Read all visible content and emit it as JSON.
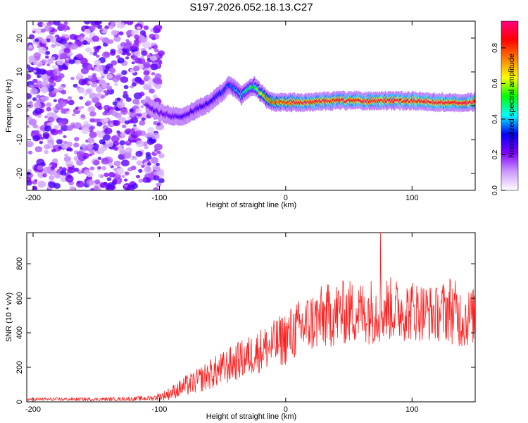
{
  "title": "S197.2026.052.18.13.C27",
  "chart_data": [
    {
      "type": "heatmap",
      "name": "spectrogram",
      "xlabel": "Height of straight line (km)",
      "ylabel": "Frequency (Hz)",
      "xlim": [
        -205,
        150
      ],
      "ylim": [
        -25,
        25
      ],
      "xticks": [
        -200,
        -100,
        0,
        100
      ],
      "yticks": [
        -20,
        -10,
        0,
        10,
        20
      ],
      "colorbar": {
        "label": "Normalized spectral amplitude",
        "range": [
          0,
          0.95
        ],
        "ticks": [
          "0.0",
          "0.2",
          "0.4",
          "0.6",
          "0.8"
        ],
        "colors": [
          "#ffffff",
          "#cc99ff",
          "#7f00ff",
          "#0000ff",
          "#00ffff",
          "#00ff00",
          "#ffff00",
          "#ff7f00",
          "#ff0000",
          "#ff0080"
        ]
      },
      "ridge": {
        "x": [
          -110,
          -100,
          -90,
          -80,
          -70,
          -60,
          -50,
          -45,
          -40,
          -35,
          -30,
          -25,
          -20,
          -15,
          -10,
          0,
          10,
          20,
          40,
          60,
          80,
          100,
          120,
          140,
          150
        ],
        "freq": [
          0,
          -2,
          -3,
          -3,
          -1,
          1,
          4,
          6,
          5,
          3,
          5,
          6,
          4,
          2,
          1,
          1,
          1,
          1,
          1.5,
          1.5,
          1.5,
          1.5,
          1,
          1,
          1
        ],
        "amp": [
          0.25,
          0.25,
          0.25,
          0.28,
          0.28,
          0.3,
          0.35,
          0.35,
          0.4,
          0.45,
          0.5,
          0.55,
          0.65,
          0.75,
          0.8,
          0.85,
          0.88,
          0.9,
          0.9,
          0.9,
          0.9,
          0.92,
          0.92,
          0.9,
          0.9
        ]
      },
      "noise_region": [
        -205,
        -98
      ]
    },
    {
      "type": "line",
      "name": "snr",
      "xlabel": "Height of straight line (km)",
      "ylabel": "SNR (10 * v/v)",
      "xlim": [
        -205,
        150
      ],
      "ylim": [
        0,
        980
      ],
      "xticks": [
        -200,
        -100,
        0,
        100
      ],
      "yticks": [
        0,
        200,
        400,
        600,
        800
      ],
      "color": "#ff2020",
      "series": [
        {
          "name": "SNR",
          "x": [
            -205,
            -180,
            -150,
            -120,
            -105,
            -100,
            -95,
            -90,
            -80,
            -70,
            -60,
            -50,
            -40,
            -30,
            -20,
            -10,
            0,
            10,
            20,
            30,
            40,
            50,
            60,
            70,
            80,
            90,
            100,
            110,
            120,
            130,
            140,
            150
          ],
          "mean": [
            15,
            15,
            15,
            18,
            22,
            30,
            40,
            55,
            90,
            120,
            160,
            190,
            230,
            260,
            300,
            330,
            370,
            420,
            460,
            490,
            510,
            520,
            520,
            530,
            540,
            530,
            530,
            520,
            510,
            540,
            480,
            500
          ],
          "spread": [
            10,
            10,
            10,
            12,
            15,
            25,
            30,
            40,
            60,
            70,
            90,
            100,
            110,
            120,
            130,
            140,
            160,
            170,
            180,
            190,
            190,
            190,
            180,
            200,
            190,
            180,
            180,
            170,
            160,
            200,
            180,
            160
          ]
        }
      ],
      "peak": {
        "x": 75,
        "y": 980
      }
    }
  ]
}
